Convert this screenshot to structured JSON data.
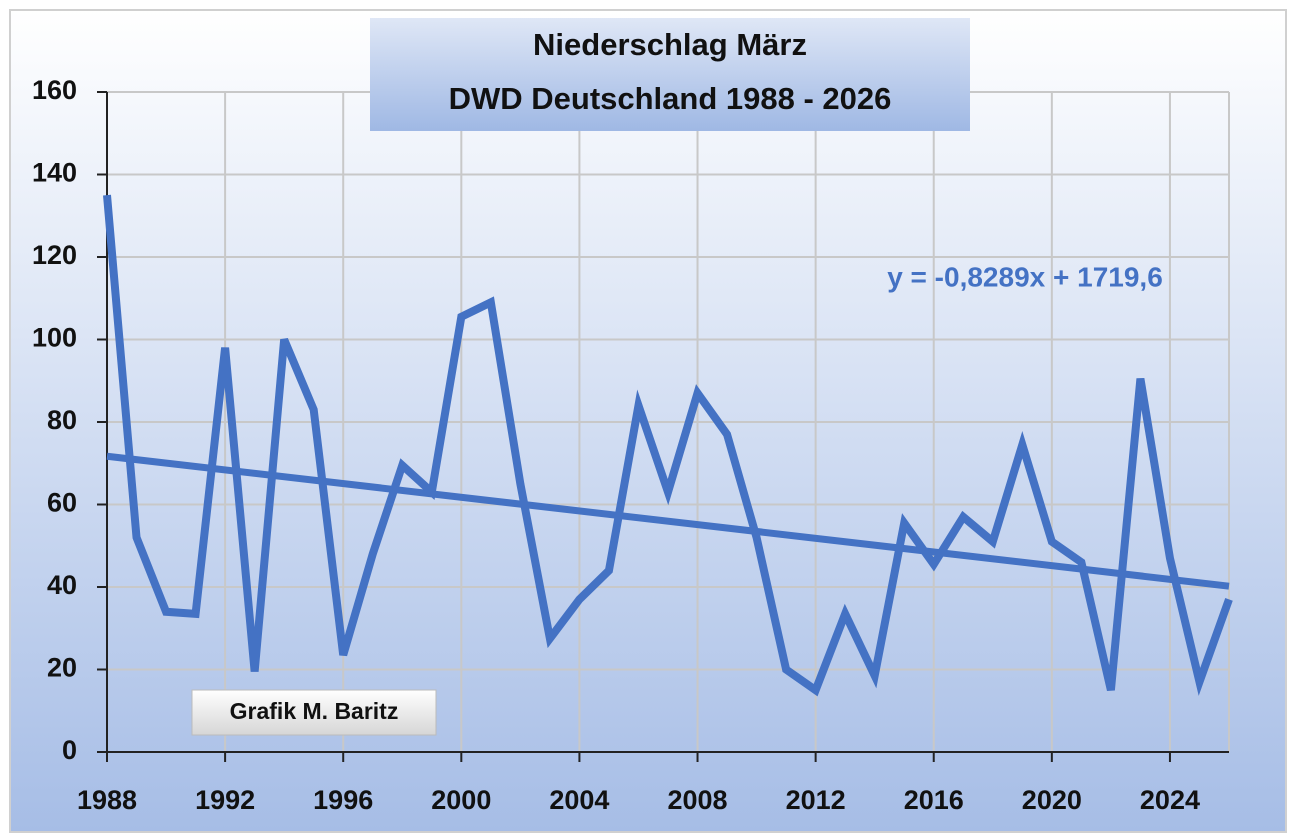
{
  "chart_data": {
    "type": "line",
    "title": [
      "Niederschlag März",
      "DWD Deutschland 1988 - 2026"
    ],
    "x": [
      1988,
      1989,
      1990,
      1991,
      1992,
      1993,
      1994,
      1995,
      1996,
      1997,
      1998,
      1999,
      2000,
      2001,
      2002,
      2003,
      2004,
      2005,
      2006,
      2007,
      2008,
      2009,
      2010,
      2011,
      2012,
      2013,
      2014,
      2015,
      2016,
      2017,
      2018,
      2019,
      2020,
      2021,
      2022,
      2023,
      2024,
      2025,
      2026
    ],
    "series": [
      {
        "name": "Niederschlag",
        "color": "#4472c4",
        "values": [
          135,
          52,
          34,
          33.5,
          98,
          19.5,
          100,
          83,
          23.5,
          48,
          69.5,
          63,
          105.5,
          109,
          65,
          27.5,
          37,
          44,
          84,
          63,
          87,
          77,
          52,
          20,
          15,
          33.5,
          18.5,
          55.5,
          45.5,
          57,
          51,
          74.5,
          51,
          46,
          15,
          90.5,
          47,
          17,
          37
        ]
      }
    ],
    "trendline": {
      "equation": "y = -0,8289x + 1719,6",
      "x": [
        1988,
        2026
      ],
      "values": [
        71.7,
        40.2
      ],
      "color": "#4472c4"
    },
    "annotation": "Grafik M. Baritz",
    "xlim": [
      1988,
      2026
    ],
    "xticks": [
      1988,
      1992,
      1996,
      2000,
      2004,
      2008,
      2012,
      2016,
      2020,
      2024
    ],
    "ylim": [
      0,
      160
    ],
    "yticks": [
      0,
      20,
      40,
      60,
      80,
      100,
      120,
      140,
      160
    ],
    "grid": true
  }
}
